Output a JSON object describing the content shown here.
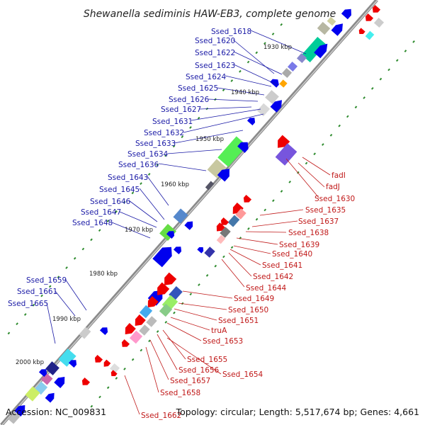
{
  "title": "Shewanella sediminis HAW-EB3, complete genome",
  "accession": "Accession: NC_009831",
  "summary": "Topology: circular; Length: 5,517,674 bp; Genes: 4,661",
  "colors": {
    "backbone": "#8a8a8a",
    "forward_label": "#1a1aa6",
    "reverse_label": "#c01818",
    "forward_gene": "#0000ee",
    "reverse_gene": "#ee0000",
    "tick_dot": "#2e8b2e"
  },
  "ticks": [
    "1930 kbp",
    "1940 kbp",
    "1950 kbp",
    "1960 kbp",
    "1970 kbp",
    "1980 kbp",
    "1990 kbp",
    "2000 kbp"
  ],
  "forward_labels": [
    "Ssed_1618",
    "Ssed_1620",
    "Ssed_1622",
    "Ssed_1623",
    "Ssed_1624",
    "Ssed_1625",
    "Ssed_1626",
    "Ssed_1627",
    "Ssed_1631",
    "Ssed_1632",
    "Ssed_1633",
    "Ssed_1634",
    "Ssed_1636",
    "Ssed_1643",
    "Ssed_1645",
    "Ssed_1646",
    "Ssed_1647",
    "Ssed_1648",
    "Ssed_1659",
    "Ssed_1661",
    "Ssed_1665"
  ],
  "reverse_labels": [
    "fadI",
    "fadJ",
    "Ssed_1630",
    "Ssed_1635",
    "Ssed_1637",
    "Ssed_1638",
    "Ssed_1639",
    "Ssed_1640",
    "Ssed_1641",
    "Ssed_1642",
    "Ssed_1644",
    "Ssed_1649",
    "Ssed_1650",
    "Ssed_1651",
    "truA",
    "Ssed_1653",
    "Ssed_1655",
    "Ssed_1656",
    "Ssed_1654",
    "Ssed_1657",
    "Ssed_1658",
    "Ssed_1662"
  ]
}
